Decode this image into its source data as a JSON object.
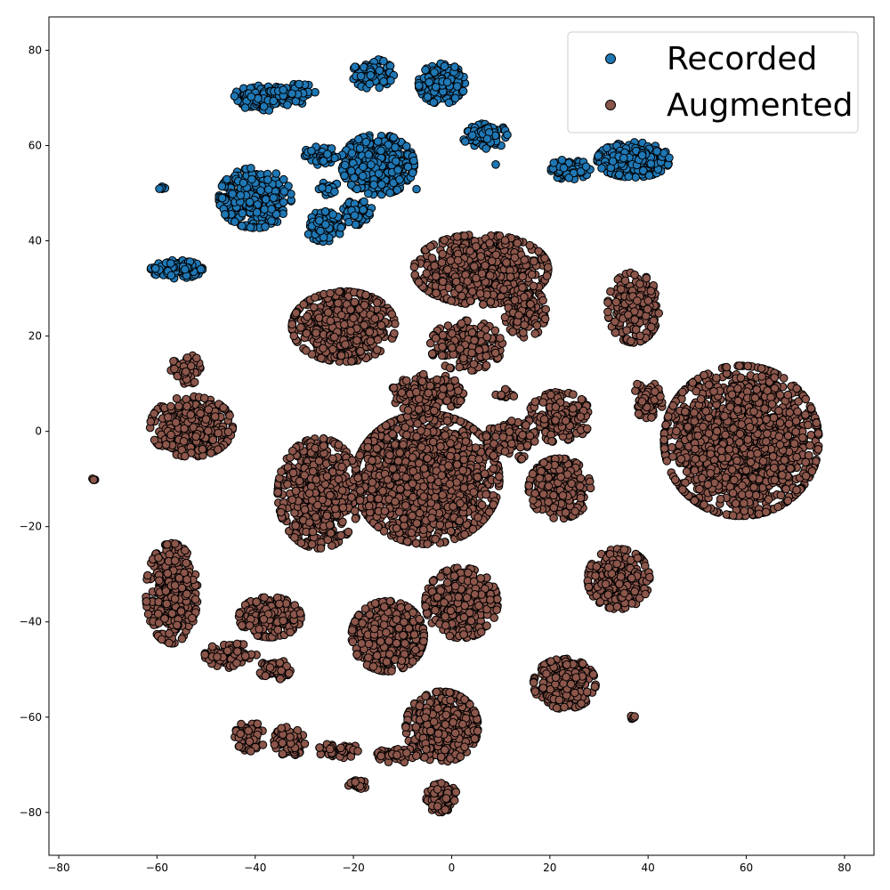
{
  "chart_data": {
    "type": "scatter",
    "title": "",
    "xlabel": "",
    "ylabel": "",
    "xlim": [
      -82,
      86
    ],
    "ylim": [
      -89,
      87
    ],
    "xticks": [
      -80,
      -60,
      -40,
      -20,
      0,
      20,
      40,
      60,
      80
    ],
    "yticks": [
      -80,
      -60,
      -40,
      -20,
      0,
      20,
      40,
      60,
      80
    ],
    "xtick_labels": [
      "−80",
      "−60",
      "−40",
      "−20",
      "0",
      "20",
      "40",
      "60",
      "80"
    ],
    "ytick_labels": [
      "−80",
      "−60",
      "−40",
      "−20",
      "0",
      "20",
      "40",
      "60",
      "80"
    ],
    "grid": false,
    "legend": {
      "position": "top-right",
      "entries": [
        "Recorded",
        "Augmented"
      ]
    },
    "marker_edge_color": "#000000",
    "series": [
      {
        "name": "Recorded",
        "color": "#1f77b4",
        "clusters": [
          {
            "cx": -39,
            "cy": 70,
            "rx": 5,
            "ry": 3,
            "n": 110
          },
          {
            "cx": -32,
            "cy": 71,
            "rx": 4,
            "ry": 2.5,
            "n": 70
          },
          {
            "cx": -16,
            "cy": 75,
            "rx": 4,
            "ry": 3,
            "n": 90
          },
          {
            "cx": -2,
            "cy": 73,
            "rx": 4.5,
            "ry": 4,
            "n": 170
          },
          {
            "cx": 7,
            "cy": 62,
            "rx": 4.5,
            "ry": 2.5,
            "n": 80
          },
          {
            "cx": -15,
            "cy": 56,
            "rx": 7,
            "ry": 6,
            "n": 380
          },
          {
            "cx": -26,
            "cy": 58,
            "rx": 4,
            "ry": 2,
            "n": 50
          },
          {
            "cx": -40,
            "cy": 49,
            "rx": 7,
            "ry": 6,
            "n": 330
          },
          {
            "cx": -26,
            "cy": 43,
            "rx": 3.5,
            "ry": 3,
            "n": 100
          },
          {
            "cx": -19,
            "cy": 46,
            "rx": 3,
            "ry": 2.5,
            "n": 60
          },
          {
            "cx": -25,
            "cy": 51,
            "rx": 2,
            "ry": 1.5,
            "n": 25
          },
          {
            "cx": -56,
            "cy": 34,
            "rx": 5,
            "ry": 1.8,
            "n": 120
          },
          {
            "cx": 24,
            "cy": 55,
            "rx": 4,
            "ry": 2,
            "n": 70
          },
          {
            "cx": 37,
            "cy": 57,
            "rx": 7,
            "ry": 3.5,
            "n": 260
          },
          {
            "cx": -59,
            "cy": 51,
            "rx": 0.6,
            "ry": 0.4,
            "n": 8
          },
          {
            "cx": -7,
            "cy": 51,
            "rx": 0.3,
            "ry": 0.3,
            "n": 1
          },
          {
            "cx": 9,
            "cy": 56,
            "rx": 0.3,
            "ry": 0.3,
            "n": 1
          }
        ]
      },
      {
        "name": "Augmented",
        "color": "#8c564b",
        "clusters": [
          {
            "cx": 6,
            "cy": 34,
            "rx": 13,
            "ry": 7,
            "n": 700
          },
          {
            "cx": -22,
            "cy": 22,
            "rx": 10,
            "ry": 7,
            "n": 600
          },
          {
            "cx": 37,
            "cy": 26,
            "rx": 5,
            "ry": 7,
            "n": 200
          },
          {
            "cx": 3,
            "cy": 18,
            "rx": 7,
            "ry": 5,
            "n": 200
          },
          {
            "cx": 15,
            "cy": 25,
            "rx": 4,
            "ry": 5,
            "n": 120
          },
          {
            "cx": 59,
            "cy": -2,
            "rx": 15,
            "ry": 15,
            "n": 1500
          },
          {
            "cx": -53,
            "cy": 1,
            "rx": 8,
            "ry": 6,
            "n": 400
          },
          {
            "cx": -54,
            "cy": 13,
            "rx": 3,
            "ry": 3,
            "n": 60
          },
          {
            "cx": -5,
            "cy": -10,
            "rx": 14,
            "ry": 13,
            "n": 1500
          },
          {
            "cx": -27,
            "cy": -13,
            "rx": 8,
            "ry": 11,
            "n": 600
          },
          {
            "cx": -5,
            "cy": 8,
            "rx": 7,
            "ry": 4,
            "n": 200
          },
          {
            "cx": 22,
            "cy": 3,
            "rx": 6,
            "ry": 5,
            "n": 200
          },
          {
            "cx": 22,
            "cy": -12,
            "rx": 6,
            "ry": 6,
            "n": 300
          },
          {
            "cx": 12,
            "cy": -2,
            "rx": 5,
            "ry": 4,
            "n": 100
          },
          {
            "cx": 40,
            "cy": 7,
            "rx": 3,
            "ry": 4,
            "n": 60
          },
          {
            "cx": -57,
            "cy": -34,
            "rx": 5,
            "ry": 10,
            "n": 350
          },
          {
            "cx": -37,
            "cy": -39,
            "rx": 6,
            "ry": 4,
            "n": 250
          },
          {
            "cx": -45,
            "cy": -47,
            "rx": 5,
            "ry": 2.5,
            "n": 80
          },
          {
            "cx": -36,
            "cy": -50,
            "rx": 3,
            "ry": 2,
            "n": 60
          },
          {
            "cx": -13,
            "cy": -43,
            "rx": 7,
            "ry": 7,
            "n": 500
          },
          {
            "cx": 2,
            "cy": -36,
            "rx": 7,
            "ry": 7,
            "n": 400
          },
          {
            "cx": 34,
            "cy": -31,
            "rx": 6,
            "ry": 6,
            "n": 300
          },
          {
            "cx": 23,
            "cy": -53,
            "rx": 6,
            "ry": 5,
            "n": 300
          },
          {
            "cx": -2,
            "cy": -62,
            "rx": 7,
            "ry": 7,
            "n": 500
          },
          {
            "cx": -2,
            "cy": -77,
            "rx": 3,
            "ry": 3,
            "n": 100
          },
          {
            "cx": -41,
            "cy": -64,
            "rx": 3,
            "ry": 3,
            "n": 60
          },
          {
            "cx": -33,
            "cy": -65,
            "rx": 3,
            "ry": 3,
            "n": 80
          },
          {
            "cx": -23,
            "cy": -67,
            "rx": 4,
            "ry": 1.5,
            "n": 50
          },
          {
            "cx": -19,
            "cy": -74,
            "rx": 2,
            "ry": 1,
            "n": 25
          },
          {
            "cx": -11,
            "cy": -68,
            "rx": 4,
            "ry": 1.5,
            "n": 50
          },
          {
            "cx": 11,
            "cy": 8,
            "rx": 2,
            "ry": 1,
            "n": 20
          },
          {
            "cx": 37,
            "cy": -60,
            "rx": 0.8,
            "ry": 0.4,
            "n": 10
          },
          {
            "cx": -73,
            "cy": -10,
            "rx": 0.4,
            "ry": 0.3,
            "n": 5
          }
        ]
      }
    ]
  }
}
